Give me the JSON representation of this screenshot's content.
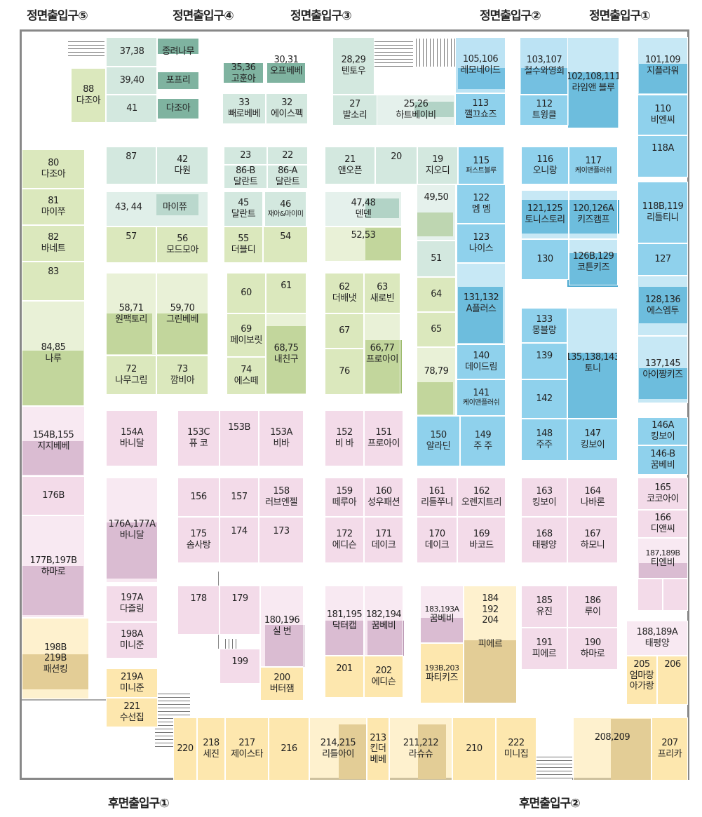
{
  "entrances": {
    "front5": "정면출입구⑤",
    "front4": "정면출입구④",
    "front3": "정면출입구③",
    "front2": "정면출입구②",
    "front1": "정면출입구①",
    "rear1": "후면출입구①",
    "rear2": "후면출입구②"
  },
  "colors": {
    "teal": "#d3e8df",
    "green": "#dbe8bd",
    "blue": "#8fd1ec",
    "pink": "#f3dbe9",
    "yellow": "#fde7ae"
  },
  "stores": [
    {
      "num": "37,38",
      "name": "종려나무"
    },
    {
      "num": "39,40",
      "name": "포프리"
    },
    {
      "num": "41",
      "name": "다조아"
    },
    {
      "num": "88",
      "name": "다조아"
    },
    {
      "num": "35,36",
      "name": "고훈아"
    },
    {
      "num": "30,31",
      "name": "오프베베"
    },
    {
      "num": "33",
      "name": "빼로베베"
    },
    {
      "num": "32",
      "name": "에이스펙"
    },
    {
      "num": "28,29",
      "name": "텐토우"
    },
    {
      "num": "27",
      "name": "발소리"
    },
    {
      "num": "25,26",
      "name": "하트베이비"
    },
    {
      "num": "105,106",
      "name": "레모네이드"
    },
    {
      "num": "113",
      "name": "깰끄쇼즈"
    },
    {
      "num": "103,107",
      "name": "철수와영희"
    },
    {
      "num": "112",
      "name": "트윙클"
    },
    {
      "num": "102,108,111",
      "name": "라임앤 블루"
    },
    {
      "num": "101,109",
      "name": "지플라워"
    },
    {
      "num": "110",
      "name": "비엔씨"
    },
    {
      "num": "80",
      "name": "다조아"
    },
    {
      "num": "81",
      "name": "마이쭈"
    },
    {
      "num": "82",
      "name": "바네트"
    },
    {
      "num": "83",
      "name": ""
    },
    {
      "num": "84,85",
      "name": "나루"
    },
    {
      "num": "87",
      "name": ""
    },
    {
      "num": "42",
      "name": "다원"
    },
    {
      "num": "23",
      "name": ""
    },
    {
      "num": "22",
      "name": ""
    },
    {
      "num": "86-B",
      "name": "달란트"
    },
    {
      "num": "86-A",
      "name": "달란트"
    },
    {
      "num": "21",
      "name": "앤오픈"
    },
    {
      "num": "20",
      "name": ""
    },
    {
      "num": "19",
      "name": "지오디"
    },
    {
      "num": "115",
      "name": "퍼스트블루"
    },
    {
      "num": "116",
      "name": "오니랑"
    },
    {
      "num": "117",
      "name": "케이맨플러쉬"
    },
    {
      "num": "118A",
      "name": ""
    },
    {
      "num": "43, 44",
      "name": "마이쮸"
    },
    {
      "num": "45",
      "name": "달란트"
    },
    {
      "num": "46",
      "name": "재아&마이미"
    },
    {
      "num": "47,48",
      "name": "덴덴"
    },
    {
      "num": "49,50",
      "name": ""
    },
    {
      "num": "122",
      "name": "멤 멤"
    },
    {
      "num": "121,125",
      "name": "토니스토리"
    },
    {
      "num": "120,126A",
      "name": "키즈캠프"
    },
    {
      "num": "118B,119",
      "name": "리틀티니"
    },
    {
      "num": "57",
      "name": ""
    },
    {
      "num": "56",
      "name": "모드모아"
    },
    {
      "num": "55",
      "name": "더블디"
    },
    {
      "num": "54",
      "name": ""
    },
    {
      "num": "52,53",
      "name": ""
    },
    {
      "num": "51",
      "name": ""
    },
    {
      "num": "123",
      "name": "나이스"
    },
    {
      "num": "130",
      "name": ""
    },
    {
      "num": "126B,129",
      "name": "코튼키즈"
    },
    {
      "num": "127",
      "name": ""
    },
    {
      "num": "58,71",
      "name": "원팩토리"
    },
    {
      "num": "59,70",
      "name": "그린베베"
    },
    {
      "num": "60",
      "name": ""
    },
    {
      "num": "61",
      "name": ""
    },
    {
      "num": "62",
      "name": "더배냇"
    },
    {
      "num": "63",
      "name": "새로빈"
    },
    {
      "num": "64",
      "name": ""
    },
    {
      "num": "131,132",
      "name": "A플러스"
    },
    {
      "num": "128,136",
      "name": "에스엠투"
    },
    {
      "num": "69",
      "name": "페이보릿"
    },
    {
      "num": "68,75",
      "name": "내친구"
    },
    {
      "num": "67",
      "name": ""
    },
    {
      "num": "66,77",
      "name": "프로아이"
    },
    {
      "num": "65",
      "name": ""
    },
    {
      "num": "133",
      "name": "몽블랑"
    },
    {
      "num": "135,138,143",
      "name": "토니"
    },
    {
      "num": "72",
      "name": "나무그림"
    },
    {
      "num": "73",
      "name": "깜비아"
    },
    {
      "num": "74",
      "name": "에스떼"
    },
    {
      "num": "76",
      "name": ""
    },
    {
      "num": "78,79",
      "name": ""
    },
    {
      "num": "140",
      "name": "데이드림"
    },
    {
      "num": "139",
      "name": ""
    },
    {
      "num": "137,145",
      "name": "아이짱키즈"
    },
    {
      "num": "141",
      "name": "케이맨플러쉬"
    },
    {
      "num": "142",
      "name": ""
    },
    {
      "num": "154B,155",
      "name": "지지베베"
    },
    {
      "num": "154A",
      "name": "바니달"
    },
    {
      "num": "153C",
      "name": "퓨 코"
    },
    {
      "num": "153B",
      "name": ""
    },
    {
      "num": "153A",
      "name": "비바"
    },
    {
      "num": "152",
      "name": "비 바"
    },
    {
      "num": "151",
      "name": "프로아이"
    },
    {
      "num": "150",
      "name": "알라딘"
    },
    {
      "num": "149",
      "name": "주 주"
    },
    {
      "num": "148",
      "name": "주주"
    },
    {
      "num": "147",
      "name": "킹보이"
    },
    {
      "num": "146A",
      "name": "킹보이"
    },
    {
      "num": "146-B",
      "name": "꿈베비"
    },
    {
      "num": "176B",
      "name": ""
    },
    {
      "num": "176A,177A",
      "name": "바니달"
    },
    {
      "num": "156",
      "name": ""
    },
    {
      "num": "157",
      "name": ""
    },
    {
      "num": "158",
      "name": "러브엔젤"
    },
    {
      "num": "159",
      "name": "떼루아"
    },
    {
      "num": "160",
      "name": "성우패션"
    },
    {
      "num": "161",
      "name": "리틀쭈니"
    },
    {
      "num": "162",
      "name": "오렌지트리"
    },
    {
      "num": "163",
      "name": "킹보이"
    },
    {
      "num": "164",
      "name": "나바론"
    },
    {
      "num": "165",
      "name": "코코아이"
    },
    {
      "num": "175",
      "name": "솜사탕"
    },
    {
      "num": "174",
      "name": ""
    },
    {
      "num": "173",
      "name": ""
    },
    {
      "num": "172",
      "name": "에디슨"
    },
    {
      "num": "171",
      "name": "데이크"
    },
    {
      "num": "170",
      "name": "데이크"
    },
    {
      "num": "169",
      "name": "바코드"
    },
    {
      "num": "168",
      "name": "태평양"
    },
    {
      "num": "167",
      "name": "하모니"
    },
    {
      "num": "166",
      "name": "디앤씨"
    },
    {
      "num": "177B,197B",
      "name": "하마로"
    },
    {
      "num": "187,189B",
      "name": "티엔비"
    },
    {
      "num": "197A",
      "name": "다즐링"
    },
    {
      "num": "178",
      "name": ""
    },
    {
      "num": "179",
      "name": ""
    },
    {
      "num": "180,196",
      "name": "실 번"
    },
    {
      "num": "181,195",
      "name": "닥터캡"
    },
    {
      "num": "182,194",
      "name": "꿈베비"
    },
    {
      "num": "183,193A",
      "name": "꿈베비"
    },
    {
      "num": "184 192 204",
      "name": "피에르"
    },
    {
      "num": "185",
      "name": "유진"
    },
    {
      "num": "186",
      "name": "루이"
    },
    {
      "num": "198A",
      "name": "미니준"
    },
    {
      "num": "198B 219B",
      "name": "패션킹"
    },
    {
      "num": "199",
      "name": ""
    },
    {
      "num": "200",
      "name": "버터잼"
    },
    {
      "num": "201",
      "name": ""
    },
    {
      "num": "202",
      "name": "에디슨"
    },
    {
      "num": "193B,203",
      "name": "파티키즈"
    },
    {
      "num": "191",
      "name": "피에르"
    },
    {
      "num": "190",
      "name": "하마로"
    },
    {
      "num": "188,189A",
      "name": "태평양"
    },
    {
      "num": "219A",
      "name": "미니준"
    },
    {
      "num": "205",
      "name": "엄마랑아가랑"
    },
    {
      "num": "206",
      "name": ""
    },
    {
      "num": "221",
      "name": "수선집"
    },
    {
      "num": "220",
      "name": ""
    },
    {
      "num": "218",
      "name": "세진"
    },
    {
      "num": "217",
      "name": "제이스타"
    },
    {
      "num": "216",
      "name": ""
    },
    {
      "num": "214,215",
      "name": "리틀아이"
    },
    {
      "num": "213",
      "name": "킨더베베"
    },
    {
      "num": "211,212",
      "name": "라슈슈"
    },
    {
      "num": "210",
      "name": ""
    },
    {
      "num": "222",
      "name": "미니집"
    },
    {
      "num": "208,209",
      "name": ""
    },
    {
      "num": "207",
      "name": "프리카"
    }
  ]
}
